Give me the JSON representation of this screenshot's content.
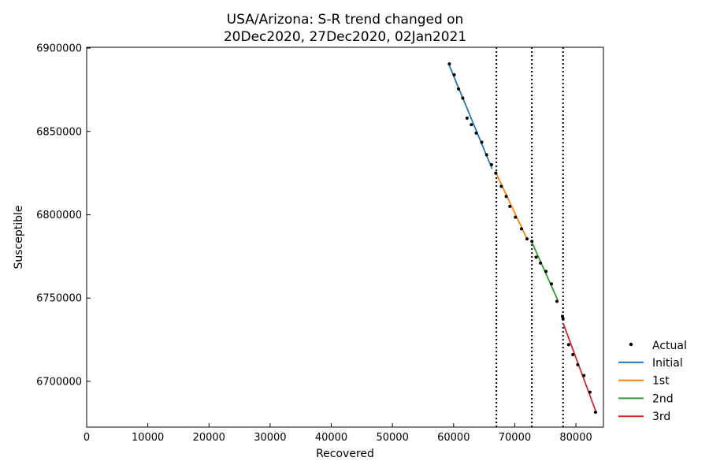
{
  "chart_data": {
    "type": "line",
    "title_line1": "USA/Arizona: S-R trend changed on",
    "title_line2": "20Dec2020, 27Dec2020, 02Jan2021",
    "xlabel": "Recovered",
    "ylabel": "Susceptible",
    "xlim": [
      0,
      84500
    ],
    "ylim": [
      6672500,
      6900500
    ],
    "xticks": [
      0,
      10000,
      20000,
      30000,
      40000,
      50000,
      60000,
      70000,
      80000
    ],
    "yticks": [
      6700000,
      6750000,
      6800000,
      6850000,
      6900000
    ],
    "grid": false,
    "legend_position": "right",
    "change_points_x": [
      67000,
      72800,
      77900
    ],
    "actual": {
      "name": "Actual",
      "color": "#000000",
      "points": [
        [
          59300,
          6890500
        ],
        [
          60100,
          6884000
        ],
        [
          60800,
          6875500
        ],
        [
          61500,
          6870000
        ],
        [
          62200,
          6858000
        ],
        [
          62900,
          6854000
        ],
        [
          63700,
          6849000
        ],
        [
          64600,
          6843500
        ],
        [
          65400,
          6836000
        ],
        [
          66200,
          6830000
        ],
        [
          66900,
          6825000
        ],
        [
          67800,
          6817000
        ],
        [
          68600,
          6811000
        ],
        [
          69200,
          6805000
        ],
        [
          70100,
          6798500
        ],
        [
          71100,
          6791500
        ],
        [
          72000,
          6785500
        ],
        [
          72800,
          6784000
        ],
        [
          73500,
          6774500
        ],
        [
          74200,
          6771000
        ],
        [
          75100,
          6766000
        ],
        [
          76000,
          6758500
        ],
        [
          76900,
          6748000
        ],
        [
          77800,
          6739000
        ],
        [
          77900,
          6737500
        ],
        [
          78800,
          6722000
        ],
        [
          79500,
          6716000
        ],
        [
          80300,
          6710000
        ],
        [
          81300,
          6703500
        ],
        [
          82300,
          6693500
        ],
        [
          83200,
          6681500
        ]
      ]
    },
    "series": [
      {
        "name": "Initial",
        "color": "#1f77b4",
        "points": [
          [
            59300,
            6889500
          ],
          [
            66300,
            6827500
          ]
        ]
      },
      {
        "name": "1st",
        "color": "#ff7f0e",
        "points": [
          [
            67000,
            6824500
          ],
          [
            72000,
            6785500
          ]
        ]
      },
      {
        "name": "2nd",
        "color": "#2ca02c",
        "points": [
          [
            72800,
            6783500
          ],
          [
            77000,
            6749000
          ]
        ]
      },
      {
        "name": "3rd",
        "color": "#d62728",
        "points": [
          [
            77900,
            6735000
          ],
          [
            83200,
            6682500
          ]
        ]
      }
    ]
  }
}
